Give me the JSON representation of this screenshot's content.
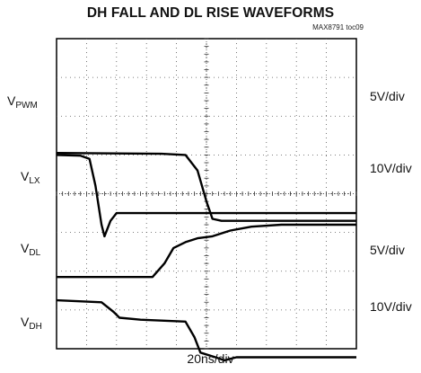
{
  "chart_data": {
    "type": "line",
    "title": "DH FALL AND DL RISE WAVEFORMS",
    "subtitle": "MAX8791 toc09",
    "xlabel": "20ns/div",
    "ylabel": "",
    "grid": true,
    "divisions": {
      "x": 10,
      "y": 8
    },
    "series": [
      {
        "name": "V",
        "sub": "PWM",
        "scale": "5V/div",
        "points": [
          [
            0,
            5.0
          ],
          [
            0.8,
            4.98
          ],
          [
            1.1,
            4.9
          ],
          [
            1.3,
            4.2
          ],
          [
            1.5,
            3.2
          ],
          [
            1.6,
            2.9
          ],
          [
            1.8,
            3.3
          ],
          [
            2.0,
            3.5
          ],
          [
            10,
            3.5
          ]
        ]
      },
      {
        "name": "V",
        "sub": "LX",
        "scale": "10V/div",
        "points": [
          [
            0,
            5.05
          ],
          [
            3.5,
            5.03
          ],
          [
            4.3,
            5.0
          ],
          [
            4.7,
            4.6
          ],
          [
            5.0,
            3.8
          ],
          [
            5.2,
            3.35
          ],
          [
            5.5,
            3.3
          ],
          [
            10,
            3.3
          ]
        ]
      },
      {
        "name": "V",
        "sub": "DL",
        "scale": "5V/div",
        "points": [
          [
            0,
            1.85
          ],
          [
            3.2,
            1.85
          ],
          [
            3.6,
            2.2
          ],
          [
            3.9,
            2.6
          ],
          [
            4.3,
            2.75
          ],
          [
            4.7,
            2.85
          ],
          [
            5.2,
            2.9
          ],
          [
            5.8,
            3.05
          ],
          [
            6.5,
            3.15
          ],
          [
            7.5,
            3.2
          ],
          [
            10,
            3.2
          ]
        ]
      },
      {
        "name": "V",
        "sub": "DH",
        "scale": "10V/div",
        "points": [
          [
            0,
            1.25
          ],
          [
            1.5,
            1.2
          ],
          [
            1.9,
            0.95
          ],
          [
            2.1,
            0.8
          ],
          [
            2.8,
            0.75
          ],
          [
            4.3,
            0.7
          ],
          [
            4.6,
            0.3
          ],
          [
            4.8,
            -0.1
          ],
          [
            5.3,
            -0.22
          ],
          [
            5.6,
            -0.3
          ],
          [
            6.0,
            -0.22
          ],
          [
            10,
            -0.22
          ]
        ]
      }
    ]
  }
}
